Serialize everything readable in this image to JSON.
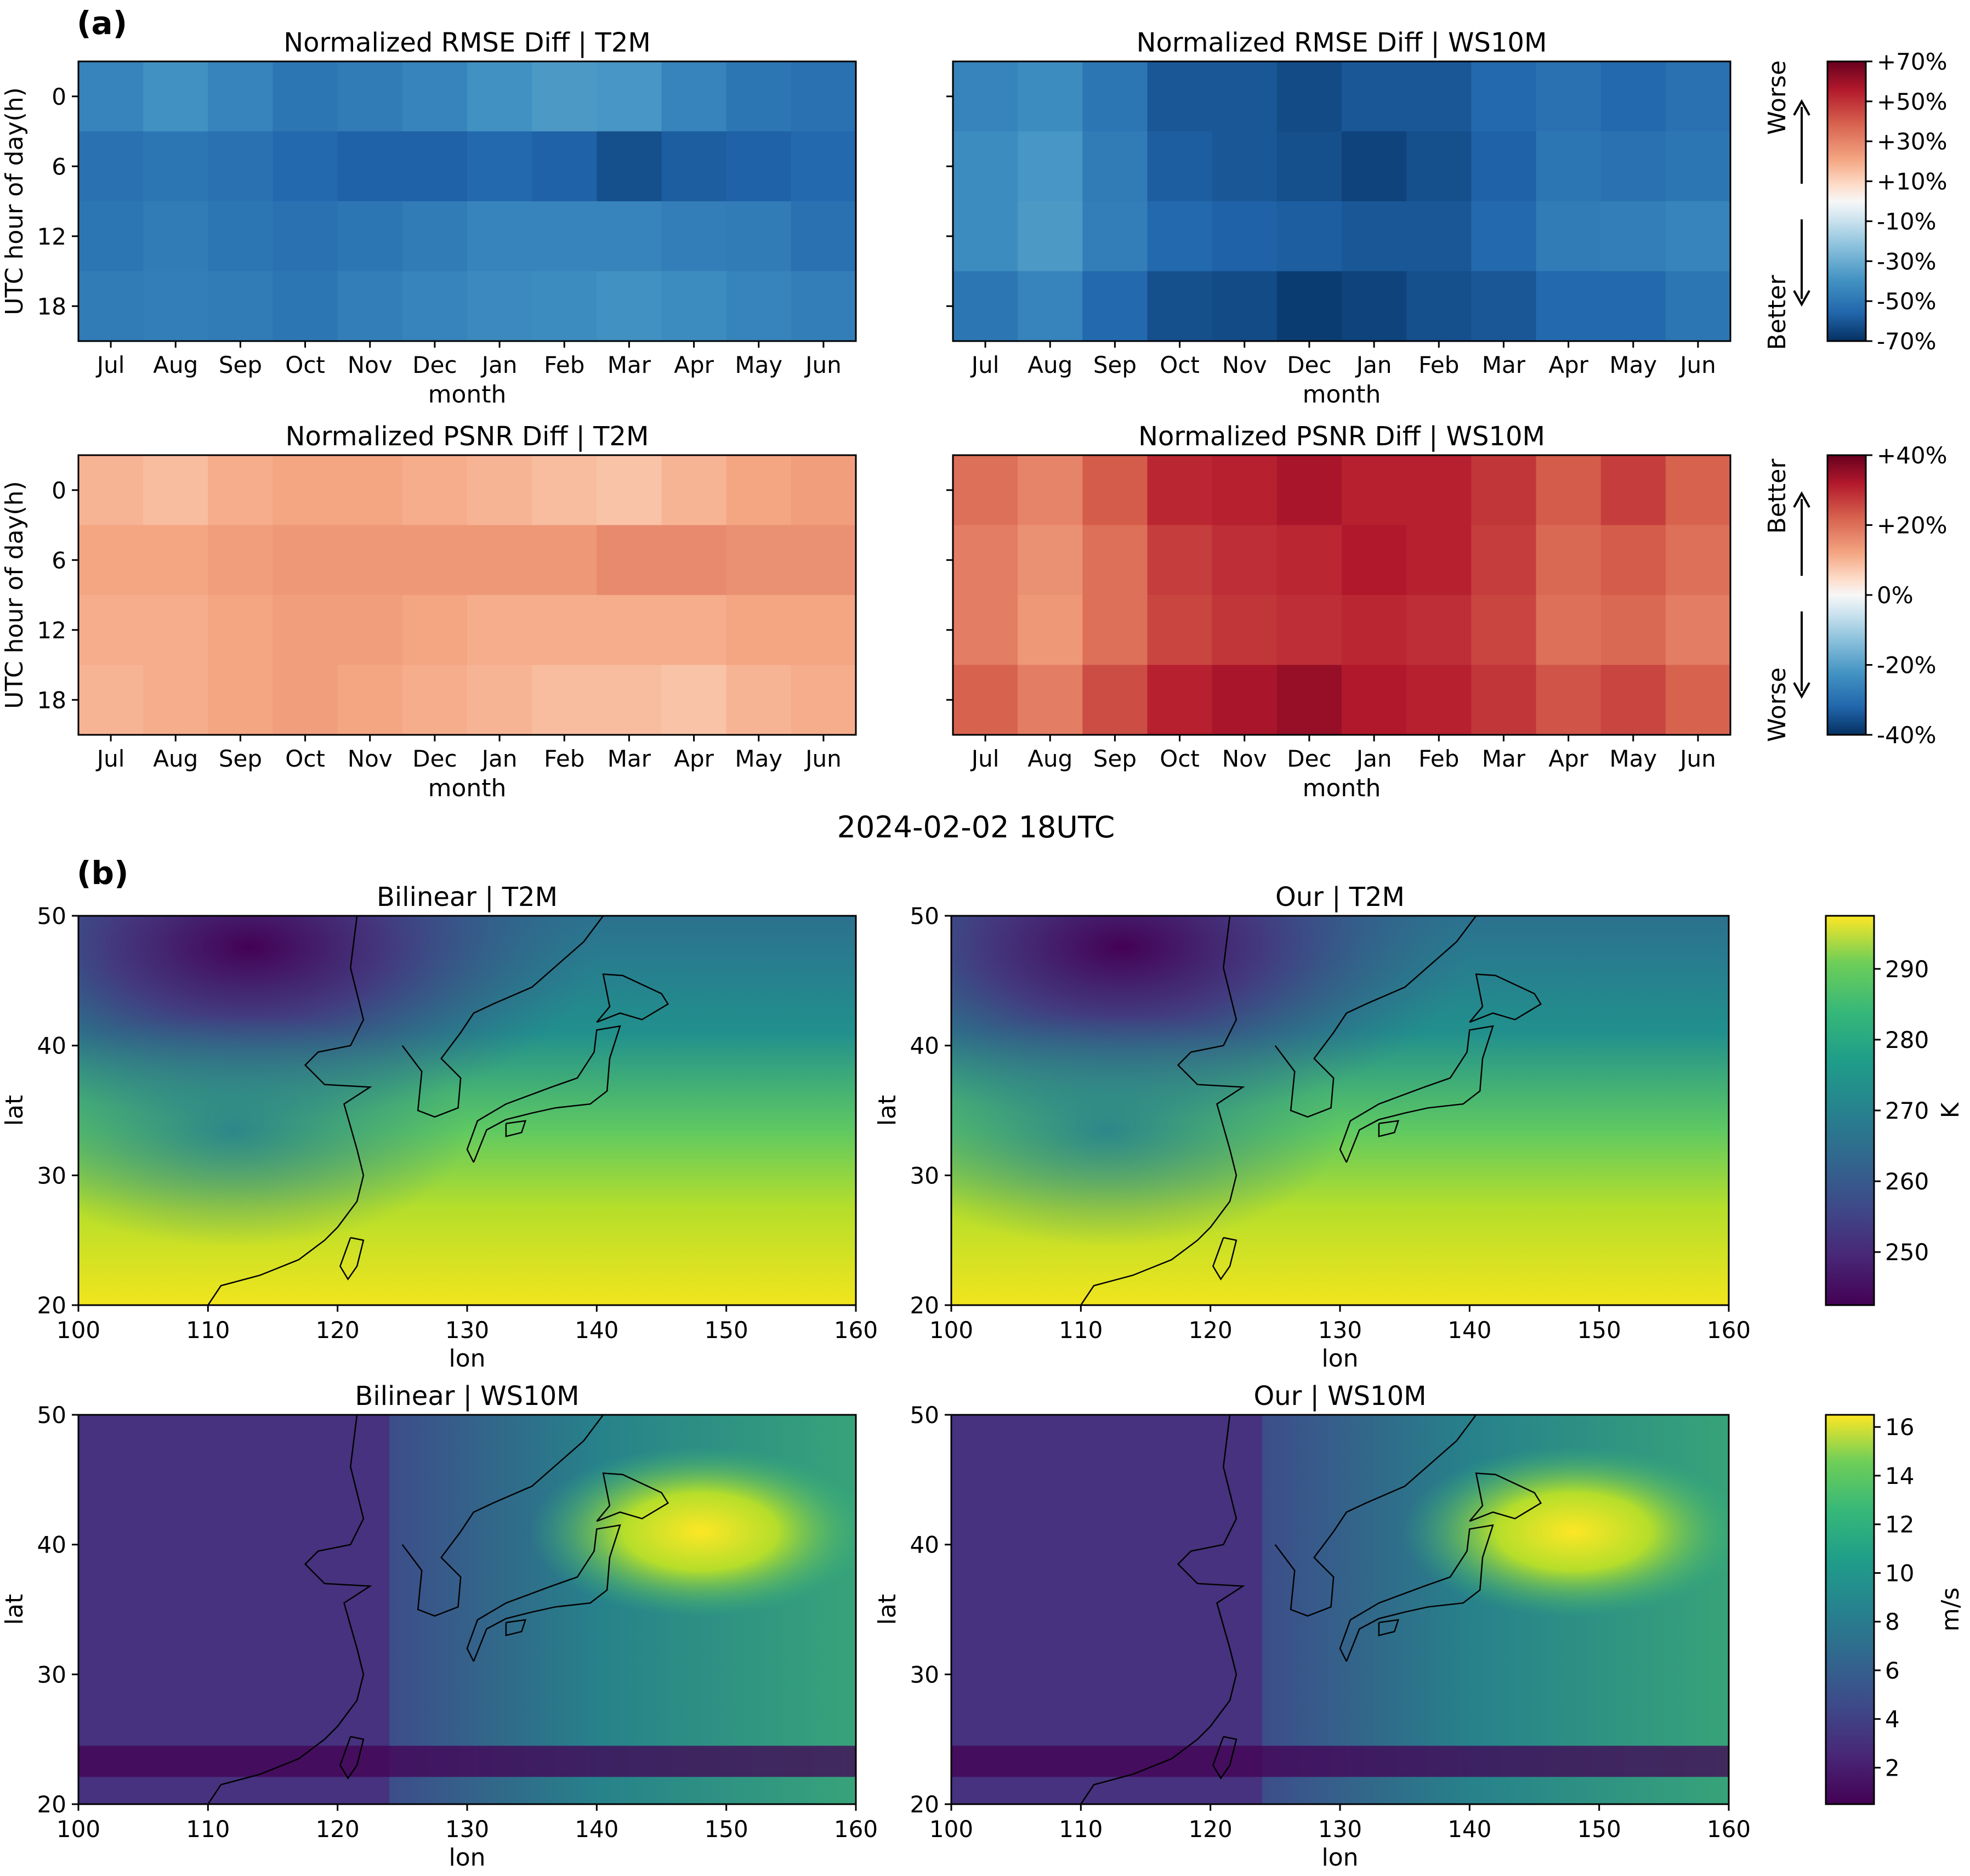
{
  "chart_data": [
    {
      "type": "heatmap",
      "title": "Normalized RMSE Diff | T2M",
      "xlabel": "month",
      "ylabel": "UTC hour of day(h)",
      "categories": [
        "Jul",
        "Aug",
        "Sep",
        "Oct",
        "Nov",
        "Dec",
        "Jan",
        "Feb",
        "Mar",
        "Apr",
        "May",
        "Jun"
      ],
      "rows": [
        "0",
        "6",
        "12",
        "18"
      ],
      "values_percent": [
        [
          -45,
          -40,
          -45,
          -50,
          -48,
          -45,
          -40,
          -37,
          -38,
          -45,
          -50,
          -52
        ],
        [
          -52,
          -50,
          -52,
          -55,
          -57,
          -57,
          -55,
          -57,
          -62,
          -58,
          -57,
          -55
        ],
        [
          -50,
          -48,
          -50,
          -52,
          -50,
          -48,
          -45,
          -45,
          -45,
          -47,
          -48,
          -52
        ],
        [
          -48,
          -47,
          -48,
          -50,
          -47,
          -45,
          -43,
          -42,
          -40,
          -42,
          -45,
          -47
        ]
      ],
      "colormap": "RdBu_r",
      "vlim": [
        -70,
        70
      ]
    },
    {
      "type": "heatmap",
      "title": "Normalized RMSE Diff | WS10M",
      "xlabel": "month",
      "ylabel": "",
      "categories": [
        "Jul",
        "Aug",
        "Sep",
        "Oct",
        "Nov",
        "Dec",
        "Jan",
        "Feb",
        "Mar",
        "Apr",
        "May",
        "Jun"
      ],
      "rows": [
        "0",
        "6",
        "12",
        "18"
      ],
      "values_percent": [
        [
          -45,
          -42,
          -50,
          -60,
          -60,
          -63,
          -60,
          -60,
          -55,
          -52,
          -55,
          -52
        ],
        [
          -42,
          -38,
          -48,
          -58,
          -60,
          -62,
          -65,
          -62,
          -57,
          -50,
          -52,
          -50
        ],
        [
          -42,
          -37,
          -47,
          -55,
          -57,
          -58,
          -60,
          -60,
          -55,
          -48,
          -47,
          -45
        ],
        [
          -50,
          -45,
          -55,
          -62,
          -63,
          -67,
          -65,
          -62,
          -60,
          -55,
          -55,
          -50
        ]
      ],
      "colormap": "RdBu_r",
      "vlim": [
        -70,
        70
      ]
    },
    {
      "type": "heatmap",
      "title": "Normalized PSNR Diff | T2M",
      "xlabel": "month",
      "ylabel": "UTC hour of day(h)",
      "categories": [
        "Jul",
        "Aug",
        "Sep",
        "Oct",
        "Nov",
        "Dec",
        "Jan",
        "Feb",
        "Mar",
        "Apr",
        "May",
        "Jun"
      ],
      "rows": [
        "0",
        "6",
        "12",
        "18"
      ],
      "values_percent": [
        [
          10,
          9,
          11,
          12,
          12,
          11,
          10,
          9,
          8,
          10,
          12,
          13
        ],
        [
          12,
          12,
          13,
          14,
          14,
          14,
          14,
          14,
          16,
          16,
          15,
          15
        ],
        [
          11,
          11,
          12,
          13,
          13,
          12,
          11,
          11,
          11,
          11,
          12,
          12
        ],
        [
          10,
          11,
          12,
          13,
          12,
          11,
          10,
          9,
          9,
          8,
          10,
          11
        ]
      ],
      "colormap": "RdBu_r",
      "vlim": [
        -40,
        40
      ]
    },
    {
      "type": "heatmap",
      "title": "Normalized PSNR Diff | WS10M",
      "xlabel": "month",
      "ylabel": "",
      "categories": [
        "Jul",
        "Aug",
        "Sep",
        "Oct",
        "Nov",
        "Dec",
        "Jan",
        "Feb",
        "Mar",
        "Apr",
        "May",
        "Jun"
      ],
      "rows": [
        "0",
        "6",
        "12",
        "18"
      ],
      "values_percent": [
        [
          20,
          17,
          23,
          30,
          31,
          33,
          31,
          31,
          28,
          23,
          27,
          22
        ],
        [
          18,
          15,
          20,
          27,
          29,
          30,
          32,
          31,
          27,
          21,
          23,
          20
        ],
        [
          18,
          14,
          20,
          26,
          28,
          29,
          30,
          29,
          26,
          20,
          21,
          18
        ],
        [
          22,
          18,
          25,
          31,
          33,
          35,
          32,
          31,
          28,
          24,
          26,
          22
        ]
      ],
      "colormap": "RdBu_r",
      "vlim": [
        -40,
        40
      ]
    }
  ],
  "panel_a": {
    "letter": "(a)",
    "rmse_colorbar": {
      "ticks": [
        "+70%",
        "+50%",
        "+30%",
        "+10%",
        "-10%",
        "-30%",
        "-50%",
        "-70%"
      ],
      "upper_note": "Worse",
      "lower_note": "Better"
    },
    "psnr_colorbar": {
      "ticks": [
        "+40%",
        "+20%",
        "0%",
        "-20%",
        "-40%"
      ],
      "upper_note": "Better",
      "lower_note": "Worse"
    }
  },
  "panel_b": {
    "letter": "(b)",
    "suptitle": "2024-02-02 18UTC",
    "xlabel": "lon",
    "ylabel": "lat",
    "xticks": [
      "100",
      "110",
      "120",
      "130",
      "140",
      "150",
      "160"
    ],
    "yticks": [
      "50",
      "40",
      "30",
      "20"
    ],
    "maps": [
      {
        "title": "Bilinear | T2M"
      },
      {
        "title": "Our | T2M"
      },
      {
        "title": "Bilinear | WS10M"
      },
      {
        "title": "Our | WS10M"
      }
    ],
    "t2m_colorbar": {
      "label": "K",
      "ticks": [
        "290",
        "280",
        "270",
        "260",
        "250"
      ]
    },
    "ws_colorbar": {
      "label": "m/s",
      "ticks": [
        "16",
        "14",
        "12",
        "10",
        "8",
        "6",
        "4",
        "2"
      ]
    }
  }
}
